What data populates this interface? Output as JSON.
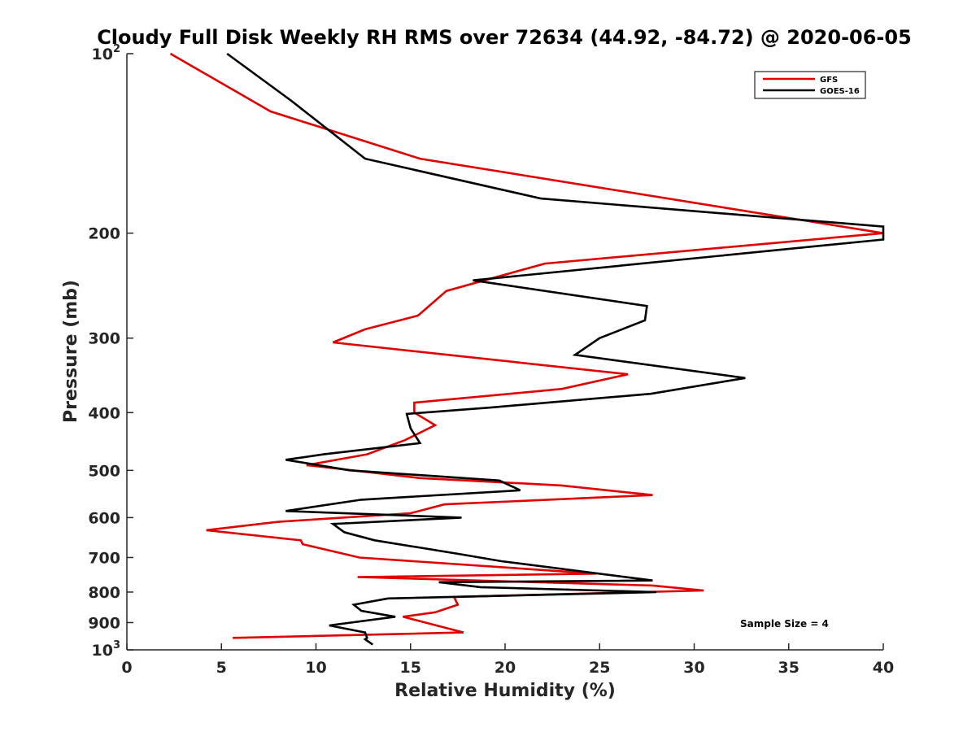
{
  "chart_data": {
    "type": "line",
    "title": "Cloudy Full Disk Weekly RH RMS over 72634 (44.92, -84.72) @ 2020-06-05",
    "xlabel": "Relative Humidity (%)",
    "ylabel": "Pressure (mb)",
    "xlim": [
      0,
      40
    ],
    "ylim": [
      100,
      1000
    ],
    "y_scale": "log",
    "y_reversed": true,
    "grid": false,
    "legend_position": "top-right",
    "x_ticks": [
      "0",
      "5",
      "10",
      "15",
      "20",
      "25",
      "30",
      "35",
      "40"
    ],
    "y_ticks": [
      {
        "value": 100,
        "label": "10",
        "sup": "2"
      },
      {
        "value": 200,
        "label": "200"
      },
      {
        "value": 300,
        "label": "300"
      },
      {
        "value": 400,
        "label": "400"
      },
      {
        "value": 500,
        "label": "500"
      },
      {
        "value": 600,
        "label": "600"
      },
      {
        "value": 700,
        "label": "700"
      },
      {
        "value": 800,
        "label": "800"
      },
      {
        "value": 900,
        "label": "900"
      },
      {
        "value": 1000,
        "label": "10",
        "sup": "3"
      }
    ],
    "annotation": "Sample Size = 4",
    "series": [
      {
        "name": "GFS",
        "color": "#e00000",
        "points": [
          [
            2.3,
            100
          ],
          [
            7.6,
            125
          ],
          [
            15.5,
            150
          ],
          [
            40,
            200
          ],
          [
            22.1,
            225
          ],
          [
            16.9,
            250
          ],
          [
            15.4,
            275
          ],
          [
            12.6,
            290
          ],
          [
            10.9,
            305
          ],
          [
            26.5,
            345
          ],
          [
            23.0,
            365
          ],
          [
            15.2,
            385
          ],
          [
            15.2,
            400
          ],
          [
            16.3,
            420
          ],
          [
            14.7,
            445
          ],
          [
            12.7,
            470
          ],
          [
            9.5,
            490
          ],
          [
            15.5,
            515
          ],
          [
            23.0,
            530
          ],
          [
            27.8,
            550
          ],
          [
            16.8,
            570
          ],
          [
            15.0,
            590
          ],
          [
            8.0,
            610
          ],
          [
            4.2,
            630
          ],
          [
            9.2,
            655
          ],
          [
            9.3,
            665
          ],
          [
            12.3,
            700
          ],
          [
            24.8,
            745
          ],
          [
            12.2,
            755
          ],
          [
            27.8,
            780
          ],
          [
            30.5,
            795
          ],
          [
            17.3,
            815
          ],
          [
            17.5,
            840
          ],
          [
            16.3,
            865
          ],
          [
            14.6,
            880
          ],
          [
            17.8,
            935
          ],
          [
            5.6,
            955
          ]
        ]
      },
      {
        "name": "GOES-16",
        "color": "#000000",
        "points": [
          [
            5.3,
            100
          ],
          [
            8.7,
            120
          ],
          [
            12.6,
            150
          ],
          [
            21.9,
            175
          ],
          [
            40,
            195
          ],
          [
            40,
            205
          ],
          [
            18.3,
            240
          ],
          [
            27.5,
            265
          ],
          [
            27.4,
            280
          ],
          [
            25.0,
            300
          ],
          [
            23.7,
            320
          ],
          [
            32.7,
            350
          ],
          [
            27.7,
            372
          ],
          [
            19.3,
            392
          ],
          [
            14.8,
            402
          ],
          [
            15.0,
            425
          ],
          [
            15.5,
            450
          ],
          [
            10.4,
            470
          ],
          [
            8.4,
            480
          ],
          [
            11.8,
            500
          ],
          [
            19.7,
            520
          ],
          [
            20.8,
            540
          ],
          [
            12.4,
            560
          ],
          [
            8.4,
            585
          ],
          [
            17.7,
            600
          ],
          [
            10.9,
            615
          ],
          [
            11.5,
            635
          ],
          [
            13.1,
            655
          ],
          [
            17.5,
            690
          ],
          [
            19.8,
            710
          ],
          [
            27.8,
            765
          ],
          [
            16.5,
            770
          ],
          [
            18.7,
            785
          ],
          [
            28.0,
            800
          ],
          [
            13.8,
            820
          ],
          [
            12.0,
            840
          ],
          [
            12.4,
            860
          ],
          [
            14.2,
            880
          ],
          [
            10.7,
            910
          ],
          [
            12.6,
            935
          ],
          [
            12.7,
            955
          ],
          [
            12.6,
            960
          ],
          [
            13.0,
            980
          ]
        ]
      }
    ]
  }
}
